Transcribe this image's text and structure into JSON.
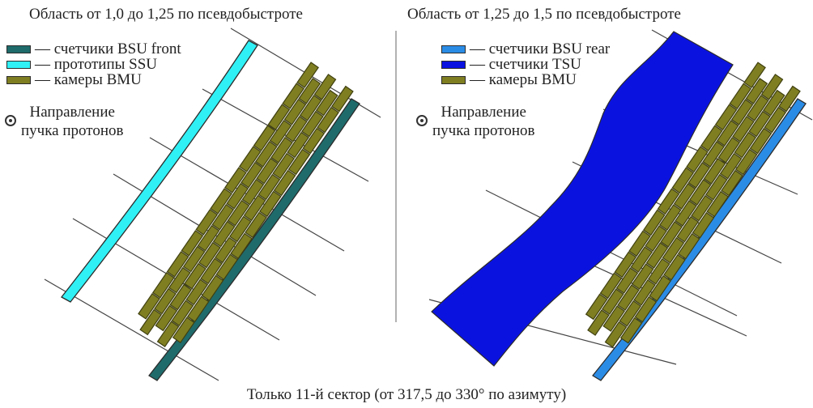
{
  "left_panel": {
    "title": "Область от 1,0 до 1,25 по псевдобыстроте",
    "legend": [
      {
        "label": "— счетчики BSU front",
        "color": "#1f6b6b"
      },
      {
        "label": "— прототипы SSU",
        "color": "#2ff0f5"
      },
      {
        "label": "— камеры BMU",
        "color": "#7f7f22"
      }
    ],
    "beam_label_line1": "Направление",
    "beam_label_line2": "пучка протонов"
  },
  "right_panel": {
    "title": "Область от 1,25 до 1,5 по псевдобыстроте",
    "legend": [
      {
        "label": "— счетчики BSU rear",
        "color": "#2b8ce6"
      },
      {
        "label": "— счетчики TSU",
        "color": "#0a12e0"
      },
      {
        "label": "— камеры BMU",
        "color": "#7f7f22"
      }
    ],
    "beam_label_line1": "Направление",
    "beam_label_line2": "пучка протонов"
  },
  "footer": "Только 11-й сектор (от 317,5 до 330° по азимуту)",
  "colors": {
    "bmu": "#7f7f22",
    "bmu_edge": "#3f3f10",
    "bsu_front": "#1f6b6b",
    "ssu": "#2ff0f5",
    "bsu_rear": "#2b8ce6",
    "tsu": "#0a12e0"
  }
}
